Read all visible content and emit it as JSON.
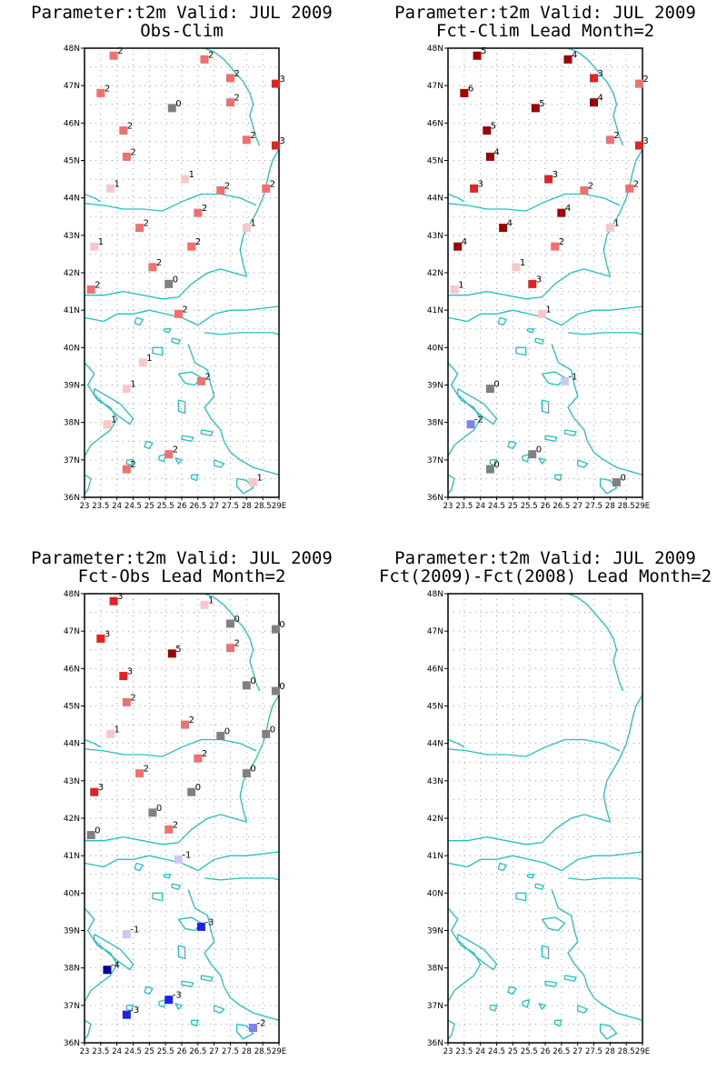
{
  "colors": {
    "coast": "#20c0c0",
    "grid": "#a0a0a0",
    "frame": "#000000",
    "zero": "#808080",
    "pos1": "#f8c8c8",
    "pos2": "#f07070",
    "pos3": "#e82020",
    "pos4": "#a00000",
    "neg1": "#c8c8f8",
    "neg2": "#8080f0",
    "neg3": "#2020f0",
    "neg4": "#0000a0"
  },
  "axes": {
    "lat_labels": [
      "48N",
      "47N",
      "46N",
      "45N",
      "44N",
      "43N",
      "42N",
      "41N",
      "40N",
      "39N",
      "38N",
      "37N",
      "36N"
    ],
    "lon_labels": [
      "23",
      "23.5",
      "24",
      "24.5",
      "25",
      "25.5",
      "26",
      "26.5",
      "27",
      "27.5",
      "28",
      "28.5",
      "29E"
    ]
  },
  "panels": [
    {
      "title_line1": "Parameter:t2m Valid: JUL 2009",
      "title_line2": "Obs-Clim",
      "points": [
        {
          "lon": 23.9,
          "lat": 47.8,
          "label": "2"
        },
        {
          "lon": 26.7,
          "lat": 47.7,
          "label": "2"
        },
        {
          "lon": 27.5,
          "lat": 47.2,
          "label": "2"
        },
        {
          "lon": 28.9,
          "lat": 47.05,
          "label": "3"
        },
        {
          "lon": 23.5,
          "lat": 46.8,
          "label": "2"
        },
        {
          "lon": 27.5,
          "lat": 46.55,
          "label": "2"
        },
        {
          "lon": 25.7,
          "lat": 46.4,
          "label": "0"
        },
        {
          "lon": 24.2,
          "lat": 45.8,
          "label": "2"
        },
        {
          "lon": 28.0,
          "lat": 45.55,
          "label": "2"
        },
        {
          "lon": 28.9,
          "lat": 45.4,
          "label": "3"
        },
        {
          "lon": 24.3,
          "lat": 45.1,
          "label": "2"
        },
        {
          "lon": 26.1,
          "lat": 44.5,
          "label": "1"
        },
        {
          "lon": 23.8,
          "lat": 44.25,
          "label": "1"
        },
        {
          "lon": 27.2,
          "lat": 44.2,
          "label": "2"
        },
        {
          "lon": 28.6,
          "lat": 44.25,
          "label": "2"
        },
        {
          "lon": 26.5,
          "lat": 43.6,
          "label": "2"
        },
        {
          "lon": 24.7,
          "lat": 43.2,
          "label": "2"
        },
        {
          "lon": 28.0,
          "lat": 43.2,
          "label": "1"
        },
        {
          "lon": 23.3,
          "lat": 42.7,
          "label": "1"
        },
        {
          "lon": 26.3,
          "lat": 42.7,
          "label": "2"
        },
        {
          "lon": 25.1,
          "lat": 42.15,
          "label": "2"
        },
        {
          "lon": 25.6,
          "lat": 41.7,
          "label": "0"
        },
        {
          "lon": 23.2,
          "lat": 41.55,
          "label": "2"
        },
        {
          "lon": 25.9,
          "lat": 40.9,
          "label": "2"
        },
        {
          "lon": 24.8,
          "lat": 39.6,
          "label": "1"
        },
        {
          "lon": 24.3,
          "lat": 38.9,
          "label": "1"
        },
        {
          "lon": 26.6,
          "lat": 39.1,
          "label": "2"
        },
        {
          "lon": 23.7,
          "lat": 37.95,
          "label": "1"
        },
        {
          "lon": 25.6,
          "lat": 37.15,
          "label": "2"
        },
        {
          "lon": 24.3,
          "lat": 36.75,
          "label": "2"
        },
        {
          "lon": 28.2,
          "lat": 36.4,
          "label": "1"
        }
      ]
    },
    {
      "title_line1": "Parameter:t2m Valid: JUL 2009",
      "title_line2": "Fct-Clim Lead Month=2",
      "points": [
        {
          "lon": 23.9,
          "lat": 47.8,
          "label": "5"
        },
        {
          "lon": 26.7,
          "lat": 47.7,
          "label": "4"
        },
        {
          "lon": 27.5,
          "lat": 47.2,
          "label": "3"
        },
        {
          "lon": 28.9,
          "lat": 47.05,
          "label": "2"
        },
        {
          "lon": 23.5,
          "lat": 46.8,
          "label": "6"
        },
        {
          "lon": 27.5,
          "lat": 46.55,
          "label": "4"
        },
        {
          "lon": 25.7,
          "lat": 46.4,
          "label": "5"
        },
        {
          "lon": 24.2,
          "lat": 45.8,
          "label": "5"
        },
        {
          "lon": 28.0,
          "lat": 45.55,
          "label": "2"
        },
        {
          "lon": 28.9,
          "lat": 45.4,
          "label": "3"
        },
        {
          "lon": 24.3,
          "lat": 45.1,
          "label": "4"
        },
        {
          "lon": 26.1,
          "lat": 44.5,
          "label": "3"
        },
        {
          "lon": 23.8,
          "lat": 44.25,
          "label": "3"
        },
        {
          "lon": 27.2,
          "lat": 44.2,
          "label": "2"
        },
        {
          "lon": 28.6,
          "lat": 44.25,
          "label": "2"
        },
        {
          "lon": 26.5,
          "lat": 43.6,
          "label": "4"
        },
        {
          "lon": 24.7,
          "lat": 43.2,
          "label": "4"
        },
        {
          "lon": 28.0,
          "lat": 43.2,
          "label": "1"
        },
        {
          "lon": 23.3,
          "lat": 42.7,
          "label": "4"
        },
        {
          "lon": 26.3,
          "lat": 42.7,
          "label": "2"
        },
        {
          "lon": 25.1,
          "lat": 42.15,
          "label": "1"
        },
        {
          "lon": 25.6,
          "lat": 41.7,
          "label": "3"
        },
        {
          "lon": 23.2,
          "lat": 41.55,
          "label": "1"
        },
        {
          "lon": 25.9,
          "lat": 40.9,
          "label": "1"
        },
        {
          "lon": 24.3,
          "lat": 38.9,
          "label": "0"
        },
        {
          "lon": 26.6,
          "lat": 39.1,
          "label": "-1"
        },
        {
          "lon": 23.7,
          "lat": 37.95,
          "label": "-2"
        },
        {
          "lon": 25.6,
          "lat": 37.15,
          "label": "0"
        },
        {
          "lon": 24.3,
          "lat": 36.75,
          "label": "0"
        },
        {
          "lon": 28.2,
          "lat": 36.4,
          "label": "0"
        }
      ]
    },
    {
      "title_line1": "Parameter:t2m Valid: JUL 2009",
      "title_line2": "Fct-Obs Lead Month=2",
      "points": [
        {
          "lon": 23.9,
          "lat": 47.8,
          "label": "3"
        },
        {
          "lon": 26.7,
          "lat": 47.7,
          "label": "1"
        },
        {
          "lon": 27.5,
          "lat": 47.2,
          "label": "0"
        },
        {
          "lon": 28.9,
          "lat": 47.05,
          "label": "0"
        },
        {
          "lon": 23.5,
          "lat": 46.8,
          "label": "3"
        },
        {
          "lon": 27.5,
          "lat": 46.55,
          "label": "2"
        },
        {
          "lon": 25.7,
          "lat": 46.4,
          "label": "5"
        },
        {
          "lon": 24.2,
          "lat": 45.8,
          "label": "3"
        },
        {
          "lon": 28.0,
          "lat": 45.55,
          "label": "0"
        },
        {
          "lon": 28.9,
          "lat": 45.4,
          "label": "0"
        },
        {
          "lon": 24.3,
          "lat": 45.1,
          "label": "2"
        },
        {
          "lon": 26.1,
          "lat": 44.5,
          "label": "2"
        },
        {
          "lon": 23.8,
          "lat": 44.25,
          "label": "1"
        },
        {
          "lon": 27.2,
          "lat": 44.2,
          "label": "0"
        },
        {
          "lon": 28.6,
          "lat": 44.25,
          "label": "0"
        },
        {
          "lon": 26.5,
          "lat": 43.6,
          "label": "2"
        },
        {
          "lon": 24.7,
          "lat": 43.2,
          "label": "2"
        },
        {
          "lon": 28.0,
          "lat": 43.2,
          "label": "0"
        },
        {
          "lon": 23.3,
          "lat": 42.7,
          "label": "3"
        },
        {
          "lon": 26.3,
          "lat": 42.7,
          "label": "0"
        },
        {
          "lon": 25.1,
          "lat": 42.15,
          "label": "0"
        },
        {
          "lon": 25.6,
          "lat": 41.7,
          "label": "2"
        },
        {
          "lon": 23.2,
          "lat": 41.55,
          "label": "0"
        },
        {
          "lon": 25.9,
          "lat": 40.9,
          "label": "-1"
        },
        {
          "lon": 24.3,
          "lat": 38.9,
          "label": "-1"
        },
        {
          "lon": 26.6,
          "lat": 39.1,
          "label": "-3"
        },
        {
          "lon": 23.7,
          "lat": 37.95,
          "label": "-4"
        },
        {
          "lon": 25.6,
          "lat": 37.15,
          "label": "-3"
        },
        {
          "lon": 24.3,
          "lat": 36.75,
          "label": "-3"
        },
        {
          "lon": 28.2,
          "lat": 36.4,
          "label": "-2"
        }
      ]
    },
    {
      "title_line1": "Parameter:t2m Valid: JUL 2009",
      "title_line2": "Fct(2009)-Fct(2008) Lead Month=2",
      "points": []
    }
  ]
}
